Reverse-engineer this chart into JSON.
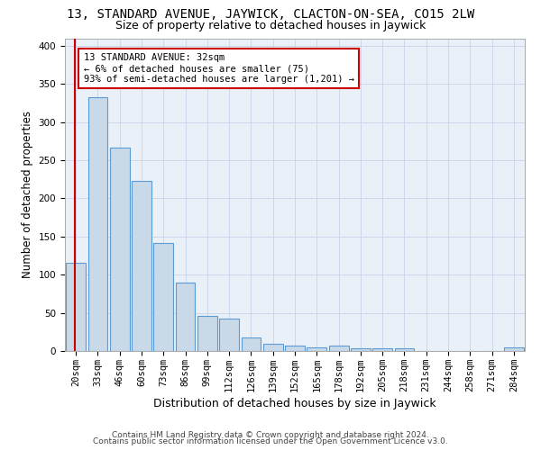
{
  "title": "13, STANDARD AVENUE, JAYWICK, CLACTON-ON-SEA, CO15 2LW",
  "subtitle": "Size of property relative to detached houses in Jaywick",
  "xlabel": "Distribution of detached houses by size in Jaywick",
  "ylabel": "Number of detached properties",
  "footer_line1": "Contains HM Land Registry data © Crown copyright and database right 2024.",
  "footer_line2": "Contains public sector information licensed under the Open Government Licence v3.0.",
  "categories": [
    "20sqm",
    "33sqm",
    "46sqm",
    "60sqm",
    "73sqm",
    "86sqm",
    "99sqm",
    "112sqm",
    "126sqm",
    "139sqm",
    "152sqm",
    "165sqm",
    "178sqm",
    "192sqm",
    "205sqm",
    "218sqm",
    "231sqm",
    "244sqm",
    "258sqm",
    "271sqm",
    "284sqm"
  ],
  "values": [
    116,
    333,
    267,
    223,
    141,
    90,
    46,
    42,
    18,
    10,
    7,
    5,
    7,
    4,
    3,
    4,
    0,
    0,
    0,
    0,
    5
  ],
  "bar_color": "#c9d9e8",
  "bar_edge_color": "#5b9bd5",
  "highlight_line_color": "#cc0000",
  "annotation_text": "13 STANDARD AVENUE: 32sqm\n← 6% of detached houses are smaller (75)\n93% of semi-detached houses are larger (1,201) →",
  "annotation_box_color": "#ffffff",
  "annotation_box_edge_color": "#cc0000",
  "ylim": [
    0,
    410
  ],
  "yticks": [
    0,
    50,
    100,
    150,
    200,
    250,
    300,
    350,
    400
  ],
  "background_color": "#ffffff",
  "grid_color": "#c8d4e8",
  "title_fontsize": 10,
  "subtitle_fontsize": 9,
  "axis_label_fontsize": 8.5,
  "tick_fontsize": 7.5,
  "annotation_fontsize": 7.5,
  "footer_fontsize": 6.5
}
